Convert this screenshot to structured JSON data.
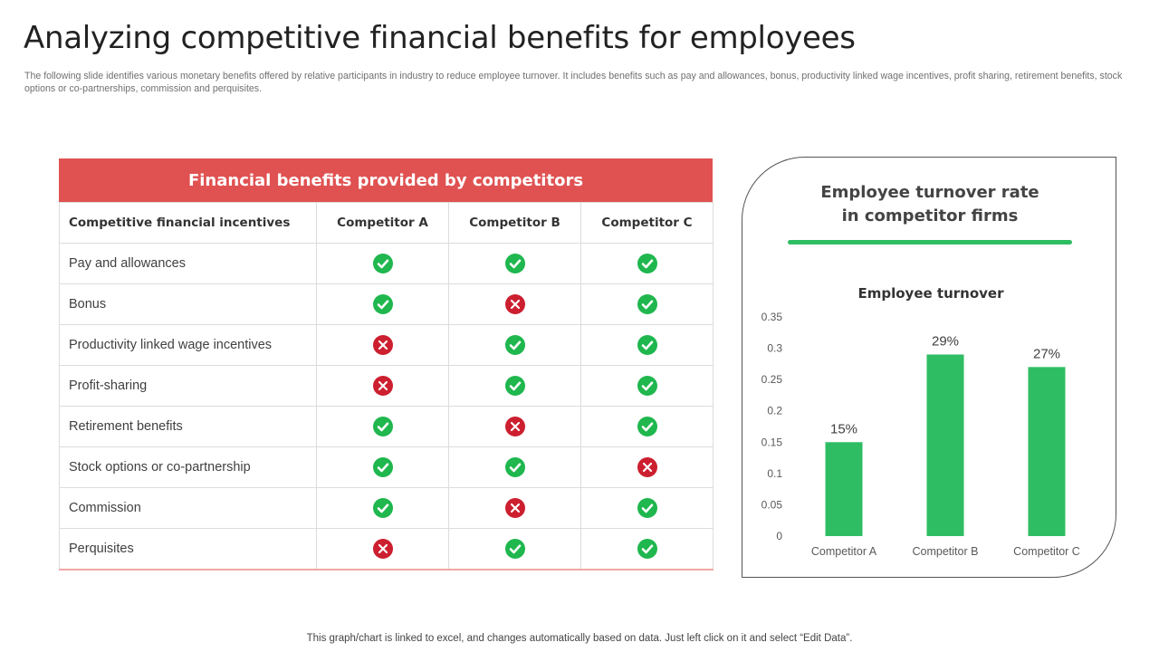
{
  "page": {
    "title": "Analyzing competitive financial benefits for employees",
    "subtitle": "The following slide identifies various monetary benefits offered by relative participants in industry to reduce employee turnover. It includes benefits such as pay and allowances, bonus, productivity linked wage incentives, profit sharing, retirement benefits, stock options or co-partnerships, commission and perquisites.",
    "footer": "This graph/chart is linked to excel, and changes automatically based on data. Just left click on it and select “Edit Data”."
  },
  "colors": {
    "accent_red": "#e05252",
    "check_green": "#1fb74e",
    "cross_red": "#cc1f2f",
    "bar_green": "#2ebd63"
  },
  "table": {
    "header": "Financial benefits provided by competitors",
    "columns": [
      "Competitive financial incentives",
      "Competitor A",
      "Competitor B",
      "Competitor C"
    ],
    "rows": [
      {
        "label": "Pay and allowances",
        "marks": [
          "check",
          "check",
          "check"
        ]
      },
      {
        "label": "Bonus",
        "marks": [
          "check",
          "cross",
          "check"
        ]
      },
      {
        "label": "Productivity linked wage incentives",
        "marks": [
          "cross",
          "check",
          "check"
        ]
      },
      {
        "label": "Profit-sharing",
        "marks": [
          "cross",
          "check",
          "check"
        ]
      },
      {
        "label": "Retirement benefits",
        "marks": [
          "check",
          "cross",
          "check"
        ]
      },
      {
        "label": "Stock options or co-partnership",
        "marks": [
          "check",
          "check",
          "cross"
        ]
      },
      {
        "label": "Commission",
        "marks": [
          "check",
          "cross",
          "check"
        ]
      },
      {
        "label": "Perquisites",
        "marks": [
          "cross",
          "check",
          "check"
        ]
      }
    ]
  },
  "panel": {
    "title_line1": "Employee turnover rate",
    "title_line2": "in competitor firms"
  },
  "chart_data": {
    "type": "bar",
    "title": "Employee turnover",
    "categories": [
      "Competitor A",
      "Competitor B",
      "Competitor C"
    ],
    "values": [
      0.15,
      0.29,
      0.27
    ],
    "data_labels": [
      "15%",
      "29%",
      "27%"
    ],
    "yticks": [
      "0",
      "0.05",
      "0.1",
      "0.15",
      "0.2",
      "0.25",
      "0.3",
      "0.35"
    ],
    "ylim": [
      0,
      0.35
    ],
    "xlabel": "",
    "ylabel": "",
    "grid": false
  }
}
